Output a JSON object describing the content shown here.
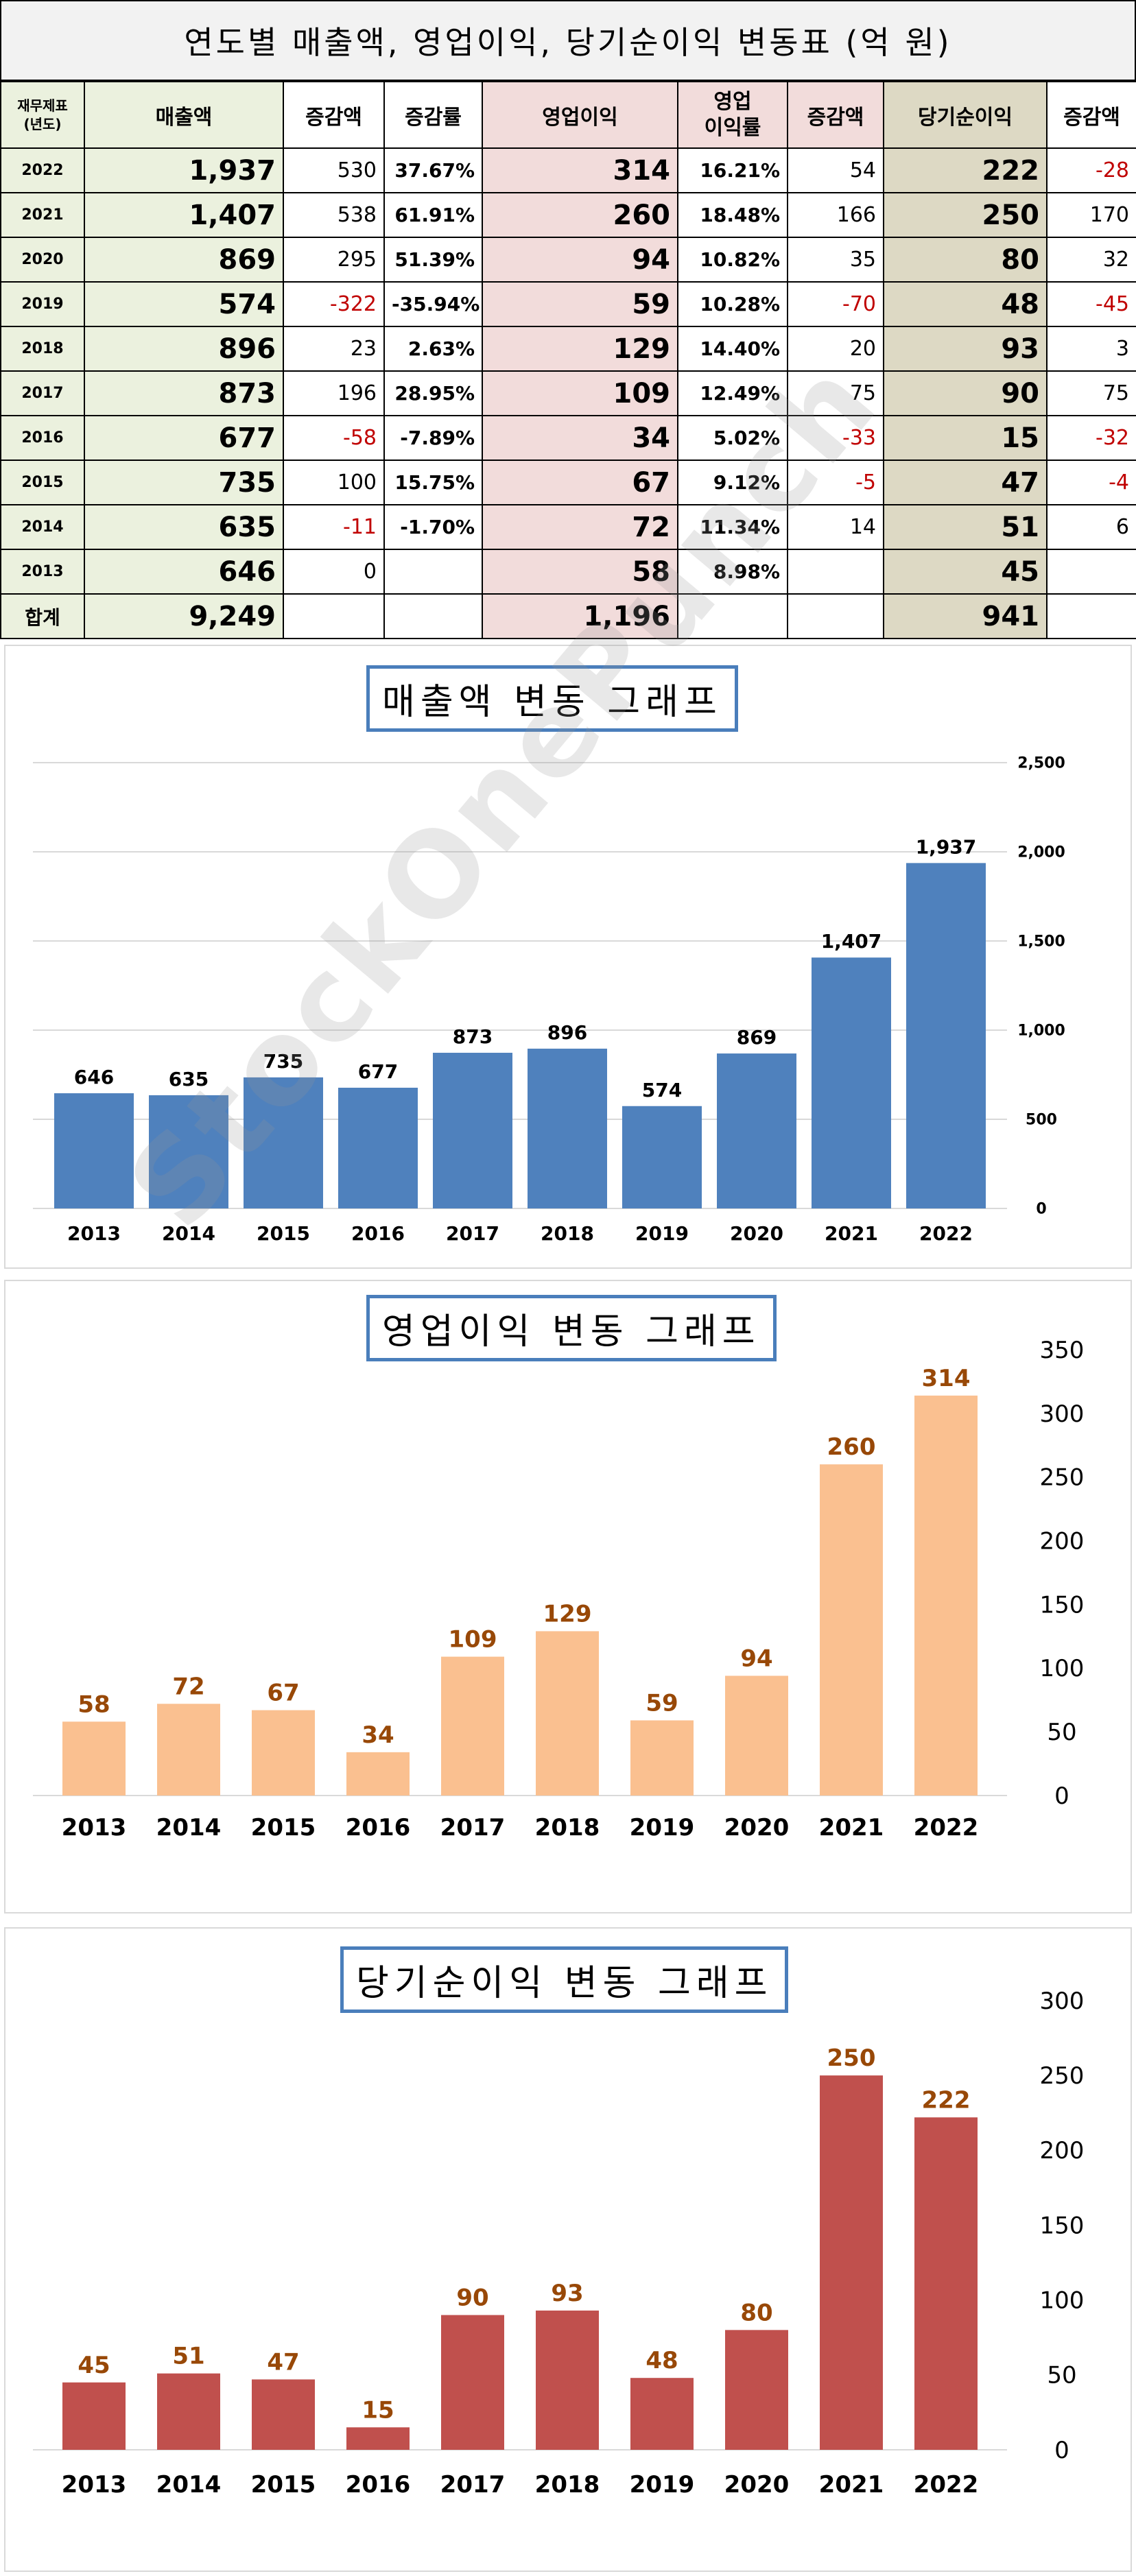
{
  "table": {
    "title": "연도별 매출액, 영업이익, 당기순이익 변동표   (억 원)",
    "header": {
      "year_line1": "재무제표",
      "year_line2": "(년도)",
      "sales": "매출액",
      "sales_change": "증감액",
      "sales_rate": "증감률",
      "op": "영업이익",
      "op_margin_line1": "영업",
      "op_margin_line2": "이익률",
      "op_change": "증감액",
      "net": "당기순이익",
      "net_change": "증감액"
    },
    "rows": [
      {
        "year": "2022",
        "sales": "1,937",
        "sales_change": "530",
        "sales_rate": "37.67%",
        "op": "314",
        "op_margin": "16.21%",
        "op_change": "54",
        "net": "222",
        "net_change": "-28"
      },
      {
        "year": "2021",
        "sales": "1,407",
        "sales_change": "538",
        "sales_rate": "61.91%",
        "op": "260",
        "op_margin": "18.48%",
        "op_change": "166",
        "net": "250",
        "net_change": "170"
      },
      {
        "year": "2020",
        "sales": "869",
        "sales_change": "295",
        "sales_rate": "51.39%",
        "op": "94",
        "op_margin": "10.82%",
        "op_change": "35",
        "net": "80",
        "net_change": "32"
      },
      {
        "year": "2019",
        "sales": "574",
        "sales_change": "-322",
        "sales_rate": "-35.94%",
        "op": "59",
        "op_margin": "10.28%",
        "op_change": "-70",
        "net": "48",
        "net_change": "-45"
      },
      {
        "year": "2018",
        "sales": "896",
        "sales_change": "23",
        "sales_rate": "2.63%",
        "op": "129",
        "op_margin": "14.40%",
        "op_change": "20",
        "net": "93",
        "net_change": "3"
      },
      {
        "year": "2017",
        "sales": "873",
        "sales_change": "196",
        "sales_rate": "28.95%",
        "op": "109",
        "op_margin": "12.49%",
        "op_change": "75",
        "net": "90",
        "net_change": "75"
      },
      {
        "year": "2016",
        "sales": "677",
        "sales_change": "-58",
        "sales_rate": "-7.89%",
        "op": "34",
        "op_margin": "5.02%",
        "op_change": "-33",
        "net": "15",
        "net_change": "-32"
      },
      {
        "year": "2015",
        "sales": "735",
        "sales_change": "100",
        "sales_rate": "15.75%",
        "op": "67",
        "op_margin": "9.12%",
        "op_change": "-5",
        "net": "47",
        "net_change": "-4"
      },
      {
        "year": "2014",
        "sales": "635",
        "sales_change": "-11",
        "sales_rate": "-1.70%",
        "op": "72",
        "op_margin": "11.34%",
        "op_change": "14",
        "net": "51",
        "net_change": "6"
      },
      {
        "year": "2013",
        "sales": "646",
        "sales_change": "0",
        "sales_rate": "",
        "op": "58",
        "op_margin": "8.98%",
        "op_change": "",
        "net": "45",
        "net_change": ""
      }
    ],
    "total": {
      "label": "합계",
      "sales": "9,249",
      "op": "1,196",
      "net": "941"
    }
  },
  "watermark": "StockOnePunch",
  "chart_data": [
    {
      "type": "bar",
      "title": "매출액 변동 그래프",
      "categories": [
        "2013",
        "2014",
        "2015",
        "2016",
        "2017",
        "2018",
        "2019",
        "2020",
        "2021",
        "2022"
      ],
      "values": [
        646,
        635,
        735,
        677,
        873,
        896,
        574,
        869,
        1407,
        1937
      ],
      "value_labels": [
        "646",
        "635",
        "735",
        "677",
        "873",
        "896",
        "574",
        "869",
        "1,407",
        "1,937"
      ],
      "yticks": [
        "0",
        "500",
        "1,000",
        "1,500",
        "2,000",
        "2,500"
      ],
      "ylim": [
        0,
        2500
      ],
      "ytick_step": 500,
      "axis_side": "right",
      "bar_color": "#4f81bd",
      "label_color": "#000000",
      "grid": true
    },
    {
      "type": "bar",
      "title": "영업이익 변동 그래프",
      "categories": [
        "2013",
        "2014",
        "2015",
        "2016",
        "2017",
        "2018",
        "2019",
        "2020",
        "2021",
        "2022"
      ],
      "values": [
        58,
        72,
        67,
        34,
        109,
        129,
        59,
        94,
        260,
        314
      ],
      "value_labels": [
        "58",
        "72",
        "67",
        "34",
        "109",
        "129",
        "59",
        "94",
        "260",
        "314"
      ],
      "yticks": [
        "0",
        "50",
        "100",
        "150",
        "200",
        "250",
        "300",
        "350"
      ],
      "ylim": [
        0,
        350
      ],
      "ytick_step": 50,
      "axis_side": "right",
      "bar_color": "#fac090",
      "label_color": "#984807",
      "grid": false
    },
    {
      "type": "bar",
      "title": "당기순이익 변동 그래프",
      "categories": [
        "2013",
        "2014",
        "2015",
        "2016",
        "2017",
        "2018",
        "2019",
        "2020",
        "2021",
        "2022"
      ],
      "values": [
        45,
        51,
        47,
        15,
        90,
        93,
        48,
        80,
        250,
        222
      ],
      "value_labels": [
        "45",
        "51",
        "47",
        "15",
        "90",
        "93",
        "48",
        "80",
        "250",
        "222"
      ],
      "yticks": [
        "0",
        "50",
        "100",
        "150",
        "200",
        "250",
        "300"
      ],
      "ylim": [
        0,
        300
      ],
      "ytick_step": 50,
      "axis_side": "right",
      "bar_color": "#c0504d",
      "label_color": "#984807",
      "grid": false
    }
  ]
}
